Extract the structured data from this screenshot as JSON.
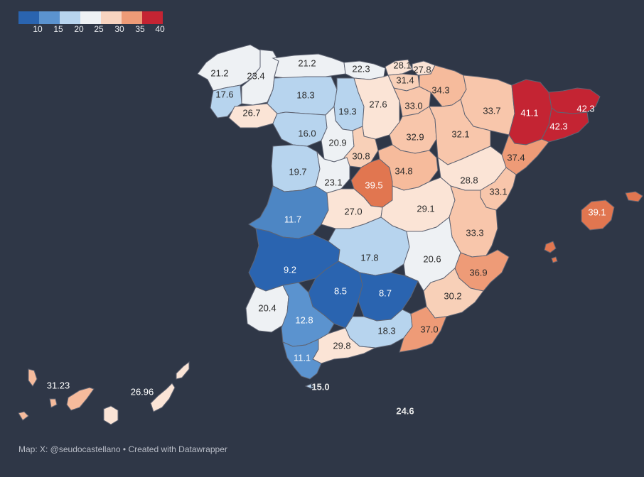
{
  "legend": {
    "colors": [
      "#2a64b0",
      "#5b93cf",
      "#b7d4ee",
      "#eef1f4",
      "#f8d4c0",
      "#ee9b77",
      "#c42433"
    ],
    "ticks": [
      "10",
      "15",
      "20",
      "25",
      "30",
      "35",
      "40"
    ]
  },
  "provinces": [
    {
      "id": "a-coruna",
      "label": "21.2",
      "color": "#eef1f4"
    },
    {
      "id": "lugo",
      "label": "23.4",
      "color": "#eef1f4"
    },
    {
      "id": "asturias",
      "label": "21.2",
      "color": "#eef1f4"
    },
    {
      "id": "cantabria",
      "label": "22.3",
      "color": "#eef1f4"
    },
    {
      "id": "bizkaia",
      "label": "28.1",
      "color": "#fbe4d6"
    },
    {
      "id": "gipuzkoa",
      "label": "27.8",
      "color": "#fbe4d6"
    },
    {
      "id": "araba",
      "label": "31.4",
      "color": "#f8d0b8"
    },
    {
      "id": "pontevedra",
      "label": "17.6",
      "color": "#b7d4ee"
    },
    {
      "id": "ourense",
      "label": "26.7",
      "color": "#fbe4d6"
    },
    {
      "id": "leon",
      "label": "18.3",
      "color": "#b7d4ee"
    },
    {
      "id": "palencia",
      "label": "19.3",
      "color": "#b7d4ee"
    },
    {
      "id": "burgos",
      "label": "27.6",
      "color": "#fbe4d6"
    },
    {
      "id": "la-rioja",
      "label": "33.0",
      "color": "#f8c6ab"
    },
    {
      "id": "navarra",
      "label": "34.3",
      "color": "#f6bb9c"
    },
    {
      "id": "huesca",
      "label": "33.7",
      "color": "#f8c6ab"
    },
    {
      "id": "lleida",
      "label": "41.1",
      "color": "#c42433"
    },
    {
      "id": "girona",
      "label": "42.3",
      "color": "#c42433"
    },
    {
      "id": "barcelona",
      "label": "42.3",
      "color": "#c42433"
    },
    {
      "id": "zamora",
      "label": "16.0",
      "color": "#b7d4ee"
    },
    {
      "id": "valladolid",
      "label": "20.9",
      "color": "#eef1f4"
    },
    {
      "id": "soria",
      "label": "32.9",
      "color": "#f8c6ab"
    },
    {
      "id": "zaragoza",
      "label": "32.1",
      "color": "#f8c6ab"
    },
    {
      "id": "tarragona",
      "label": "37.4",
      "color": "#ee9b77"
    },
    {
      "id": "segovia",
      "label": "30.8",
      "color": "#f8d0b8"
    },
    {
      "id": "salamanca",
      "label": "19.7",
      "color": "#b7d4ee"
    },
    {
      "id": "avila",
      "label": "23.1",
      "color": "#eef1f4"
    },
    {
      "id": "madrid",
      "label": "39.5",
      "color": "#e17650"
    },
    {
      "id": "guadalajara",
      "label": "34.8",
      "color": "#f6bb9c"
    },
    {
      "id": "teruel",
      "label": "28.8",
      "color": "#fbe4d6"
    },
    {
      "id": "castellon",
      "label": "33.1",
      "color": "#f8c6ab"
    },
    {
      "id": "caceres",
      "label": "11.7",
      "color": "#4d86c4"
    },
    {
      "id": "toledo",
      "label": "27.0",
      "color": "#fbe4d6"
    },
    {
      "id": "cuenca",
      "label": "29.1",
      "color": "#fbe4d6"
    },
    {
      "id": "valencia",
      "label": "33.3",
      "color": "#f8c6ab"
    },
    {
      "id": "badajoz",
      "label": "9.2",
      "color": "#2a64b0"
    },
    {
      "id": "ciudad-real",
      "label": "17.8",
      "color": "#b7d4ee"
    },
    {
      "id": "albacete",
      "label": "20.6",
      "color": "#eef1f4"
    },
    {
      "id": "alicante",
      "label": "36.9",
      "color": "#ee9b77"
    },
    {
      "id": "cordoba",
      "label": "8.5",
      "color": "#2a64b0"
    },
    {
      "id": "jaen",
      "label": "8.7",
      "color": "#2a64b0"
    },
    {
      "id": "huelva",
      "label": "20.4",
      "color": "#eef1f4"
    },
    {
      "id": "sevilla",
      "label": "12.8",
      "color": "#5b93cf"
    },
    {
      "id": "granada",
      "label": "18.3",
      "color": "#b7d4ee"
    },
    {
      "id": "murcia",
      "label": "30.2",
      "color": "#f8d0b8"
    },
    {
      "id": "almeria",
      "label": "37.0",
      "color": "#ee9b77"
    },
    {
      "id": "malaga",
      "label": "29.8",
      "color": "#fbe4d6"
    },
    {
      "id": "cadiz",
      "label": "11.1",
      "color": "#5b93cf"
    },
    {
      "id": "ceuta",
      "label": "15.0",
      "color": "#b7d4ee"
    },
    {
      "id": "melilla",
      "label": "24.6",
      "color": "#eef1f4"
    },
    {
      "id": "baleares",
      "label": "39.1",
      "color": "#e17650"
    },
    {
      "id": "sc-tenerife",
      "label": "31.23",
      "color": "#f6bb9c"
    },
    {
      "id": "las-palmas",
      "label": "26.96",
      "color": "#fbe4d6"
    }
  ],
  "credit": "Map: X: @seudocastellano • Created with Datawrapper"
}
